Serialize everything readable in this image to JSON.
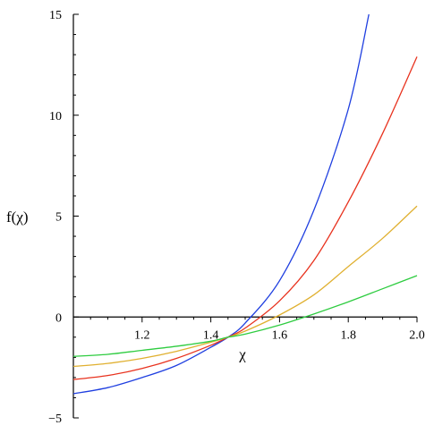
{
  "chart_data": {
    "type": "line",
    "title": "",
    "xlabel": "χ",
    "ylabel": "f(χ)",
    "xlim": [
      1.0,
      2.0
    ],
    "ylim": [
      -5,
      15
    ],
    "grid": false,
    "legend": "none",
    "x_ticks": [
      1.2,
      1.4,
      1.6,
      1.8,
      2.0
    ],
    "x_tick_labels": [
      "1.2",
      "1.4",
      "1.6",
      "1.8",
      "2.0"
    ],
    "y_ticks": [
      -5,
      0,
      5,
      10,
      15
    ],
    "y_tick_labels": [
      "−5",
      "0",
      "5",
      "10",
      "15"
    ],
    "series": [
      {
        "color": "#1f3fe0",
        "x": [
          1.0,
          1.1,
          1.2,
          1.3,
          1.4,
          1.45,
          1.5,
          1.6,
          1.7,
          1.8,
          1.86
        ],
        "y": [
          -3.8,
          -3.5,
          -3.0,
          -2.4,
          -1.5,
          -1.0,
          -0.3,
          1.8,
          5.3,
          10.3,
          15.0
        ]
      },
      {
        "color": "#e8321e",
        "x": [
          1.0,
          1.1,
          1.2,
          1.3,
          1.4,
          1.45,
          1.5,
          1.6,
          1.7,
          1.8,
          1.9,
          2.0
        ],
        "y": [
          -3.1,
          -2.9,
          -2.55,
          -2.05,
          -1.4,
          -1.0,
          -0.55,
          0.8,
          2.8,
          5.7,
          9.1,
          12.9
        ]
      },
      {
        "color": "#e0b030",
        "x": [
          1.0,
          1.1,
          1.2,
          1.3,
          1.4,
          1.45,
          1.5,
          1.6,
          1.7,
          1.8,
          1.9,
          2.0
        ],
        "y": [
          -2.45,
          -2.3,
          -2.05,
          -1.7,
          -1.25,
          -1.0,
          -0.7,
          0.1,
          1.1,
          2.5,
          3.9,
          5.5
        ]
      },
      {
        "color": "#2ecc40",
        "x": [
          1.0,
          1.1,
          1.2,
          1.3,
          1.4,
          1.45,
          1.5,
          1.6,
          1.7,
          1.8,
          1.9,
          2.0
        ],
        "y": [
          -1.95,
          -1.85,
          -1.65,
          -1.45,
          -1.2,
          -1.0,
          -0.85,
          -0.4,
          0.15,
          0.75,
          1.4,
          2.05
        ]
      }
    ]
  }
}
